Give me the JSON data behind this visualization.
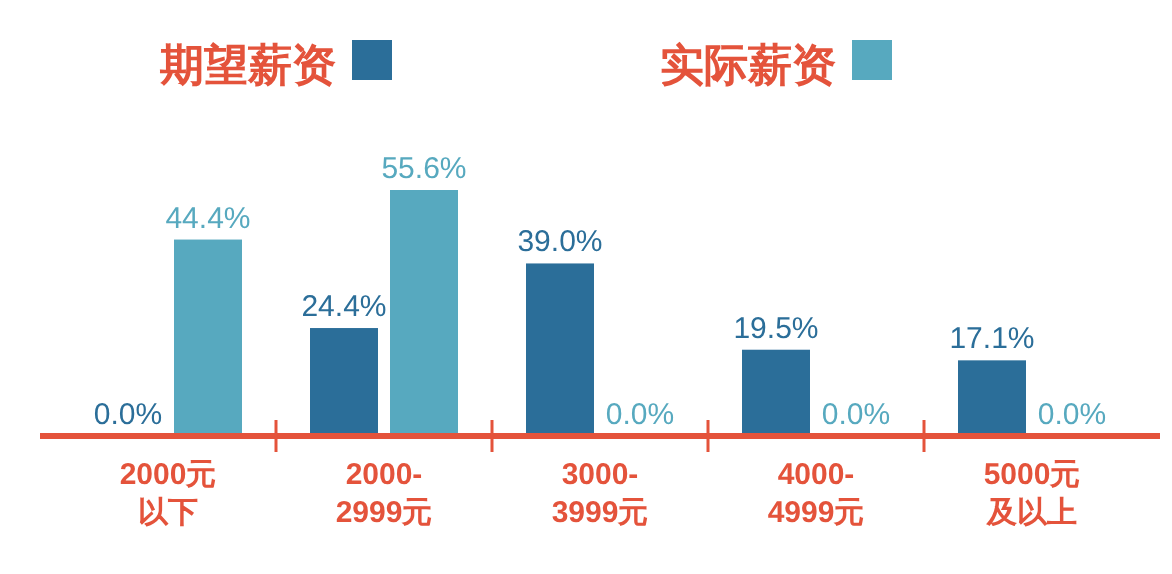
{
  "chart_data": {
    "type": "bar",
    "categories": [
      "2000元以下",
      "2000-2999元",
      "3000-3999元",
      "4000-4999元",
      "5000元及以上"
    ],
    "series": [
      {
        "name": "期望薪资",
        "color": "#2b6e99",
        "values": [
          0.0,
          24.4,
          39.0,
          19.5,
          17.1
        ],
        "value_labels": [
          "0.0%",
          "24.4%",
          "39.0%",
          "19.5%",
          "17.1%"
        ]
      },
      {
        "name": "实际薪资",
        "color": "#57a9bf",
        "values": [
          44.4,
          55.6,
          0.0,
          0.0,
          0.0
        ],
        "value_labels": [
          "44.4%",
          "55.6%",
          "0.0%",
          "0.0%",
          "0.0%"
        ]
      }
    ],
    "legend": "top"
  }
}
